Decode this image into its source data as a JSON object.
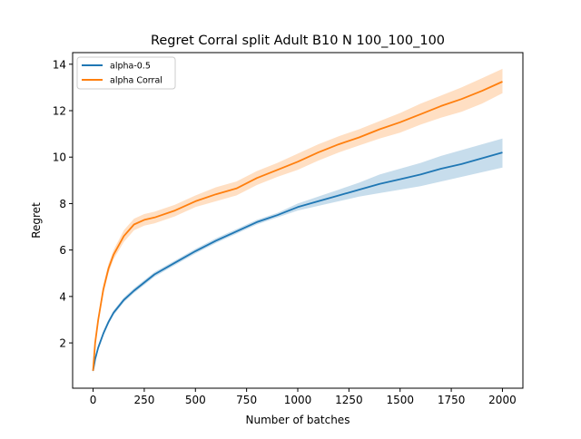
{
  "chart_data": {
    "type": "line",
    "title": "Regret Corral split Adult B10 N 100_100_100",
    "xlabel": "Number of batches",
    "ylabel": "Regret",
    "xlim": [
      -100,
      2100
    ],
    "ylim": [
      0.05,
      14.5
    ],
    "xticks": [
      0,
      250,
      500,
      750,
      1000,
      1250,
      1500,
      1750,
      2000
    ],
    "yticks": [
      2,
      4,
      6,
      8,
      10,
      12,
      14
    ],
    "grid": false,
    "legend_position": "top-left",
    "series": [
      {
        "name": "alpha-0.5",
        "color": "#1f77b4",
        "x": [
          0,
          10,
          25,
          50,
          75,
          100,
          150,
          200,
          250,
          300,
          400,
          500,
          600,
          700,
          800,
          900,
          1000,
          1100,
          1200,
          1300,
          1400,
          1500,
          1600,
          1700,
          1800,
          1900,
          2000
        ],
        "y": [
          0.8,
          1.3,
          1.8,
          2.4,
          2.9,
          3.3,
          3.85,
          4.25,
          4.6,
          4.95,
          5.45,
          5.95,
          6.4,
          6.8,
          7.2,
          7.5,
          7.85,
          8.1,
          8.35,
          8.6,
          8.85,
          9.05,
          9.25,
          9.5,
          9.7,
          9.95,
          10.2
        ],
        "lower": [
          0.7,
          1.2,
          1.7,
          2.3,
          2.8,
          3.2,
          3.75,
          4.15,
          4.5,
          4.85,
          5.35,
          5.85,
          6.3,
          6.7,
          7.1,
          7.4,
          7.7,
          7.9,
          8.1,
          8.3,
          8.45,
          8.6,
          8.75,
          8.95,
          9.15,
          9.35,
          9.55
        ],
        "upper": [
          0.9,
          1.4,
          1.9,
          2.5,
          3.0,
          3.4,
          3.95,
          4.35,
          4.7,
          5.05,
          5.55,
          6.05,
          6.5,
          6.9,
          7.3,
          7.6,
          8.0,
          8.3,
          8.6,
          8.9,
          9.25,
          9.5,
          9.75,
          10.05,
          10.3,
          10.55,
          10.8
        ]
      },
      {
        "name": "alpha Corral",
        "color": "#ff7f0e",
        "x": [
          0,
          10,
          25,
          50,
          75,
          100,
          150,
          200,
          250,
          300,
          400,
          500,
          600,
          700,
          800,
          900,
          1000,
          1100,
          1200,
          1300,
          1400,
          1500,
          1600,
          1700,
          1800,
          1900,
          2000
        ],
        "y": [
          0.8,
          2.0,
          3.0,
          4.3,
          5.2,
          5.8,
          6.6,
          7.1,
          7.3,
          7.4,
          7.7,
          8.1,
          8.4,
          8.65,
          9.1,
          9.45,
          9.8,
          10.2,
          10.55,
          10.85,
          11.2,
          11.5,
          11.85,
          12.2,
          12.5,
          12.85,
          13.25
        ],
        "lower": [
          0.7,
          1.85,
          2.85,
          4.1,
          5.0,
          5.6,
          6.35,
          6.85,
          7.05,
          7.15,
          7.45,
          7.85,
          8.1,
          8.35,
          8.8,
          9.15,
          9.45,
          9.85,
          10.2,
          10.5,
          10.8,
          11.05,
          11.4,
          11.7,
          11.95,
          12.3,
          12.75
        ],
        "upper": [
          0.9,
          2.15,
          3.15,
          4.5,
          5.4,
          6.0,
          6.85,
          7.35,
          7.55,
          7.65,
          7.95,
          8.35,
          8.7,
          8.95,
          9.4,
          9.75,
          10.15,
          10.55,
          10.9,
          11.2,
          11.55,
          11.9,
          12.3,
          12.65,
          13.0,
          13.4,
          13.8
        ]
      }
    ]
  }
}
